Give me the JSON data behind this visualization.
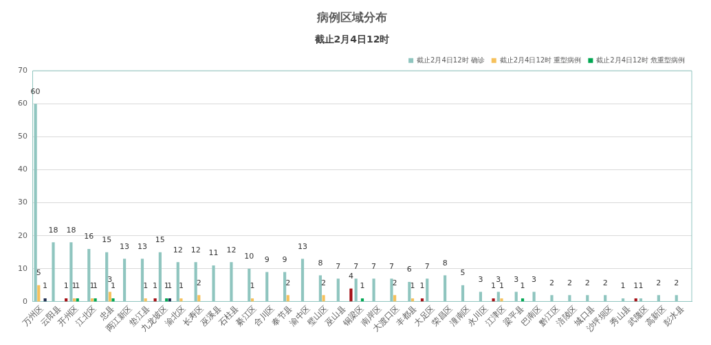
{
  "chart_data": {
    "type": "bar",
    "title": "病例区域分布",
    "subtitle": "截止2月4日12时",
    "categories": [
      "万州区",
      "云阳县",
      "开州区",
      "江北区",
      "忠县",
      "两江新区",
      "垫江县",
      "九龙坡区",
      "渝北区",
      "长寿区",
      "巫溪县",
      "石柱县",
      "綦江区",
      "合川区",
      "奉节县",
      "渝中区",
      "璧山区",
      "巫山县",
      "铜梁区",
      "南岸区",
      "大渡口区",
      "丰都县",
      "大足区",
      "荣昌区",
      "潼南区",
      "永川区",
      "江津区",
      "梁平县",
      "巴南区",
      "黔江区",
      "涪陵区",
      "城口县",
      "沙坪坝区",
      "秀山县",
      "武隆区",
      "高新区",
      "彭水县"
    ],
    "series": [
      {
        "name": "截止2月4日12时 确诊",
        "color": "#8fc5bf",
        "values": [
          60,
          18,
          18,
          16,
          15,
          13,
          13,
          15,
          12,
          12,
          11,
          12,
          10,
          9,
          9,
          13,
          8,
          7,
          7,
          7,
          7,
          6,
          7,
          8,
          5,
          3,
          3,
          3,
          3,
          2,
          2,
          2,
          2,
          1,
          1,
          2,
          2
        ]
      },
      {
        "name": "截止2月4日12时 重型病例",
        "color": "#f6c15c",
        "values": [
          5,
          null,
          1,
          1,
          3,
          null,
          1,
          null,
          1,
          2,
          null,
          null,
          1,
          null,
          2,
          null,
          2,
          null,
          null,
          null,
          2,
          1,
          null,
          null,
          null,
          null,
          1,
          null,
          null,
          null,
          null,
          null,
          null,
          null,
          null,
          null,
          null
        ]
      },
      {
        "name": "截止2月4日12时 危重型病例",
        "color": "#00a651",
        "values": [
          null,
          null,
          1,
          1,
          1,
          null,
          null,
          1,
          null,
          null,
          null,
          null,
          null,
          null,
          null,
          null,
          null,
          null,
          1,
          null,
          null,
          null,
          null,
          null,
          null,
          null,
          null,
          1,
          null,
          null,
          null,
          null,
          null,
          null,
          null,
          null,
          null
        ]
      },
      {
        "color": "#1f2d4f",
        "values": [
          1,
          null,
          null,
          null,
          null,
          null,
          null,
          1,
          null,
          null,
          null,
          null,
          null,
          null,
          null,
          null,
          null,
          null,
          null,
          null,
          null,
          null,
          null,
          null,
          null,
          null,
          null,
          null,
          null,
          null,
          null,
          null,
          null,
          null,
          null,
          null,
          null
        ]
      },
      {
        "color": "#a50f15",
        "values": [
          null,
          1,
          null,
          null,
          null,
          null,
          1,
          null,
          null,
          null,
          null,
          null,
          null,
          null,
          null,
          null,
          null,
          4,
          null,
          null,
          null,
          1,
          null,
          null,
          null,
          1,
          null,
          null,
          null,
          null,
          null,
          null,
          null,
          1,
          null,
          null,
          null
        ]
      }
    ],
    "ylim": [
      0,
      70
    ],
    "yticks": [
      0,
      10,
      20,
      30,
      40,
      50,
      60,
      70
    ],
    "grid": "y",
    "legend": "top right",
    "data_labels": true
  }
}
